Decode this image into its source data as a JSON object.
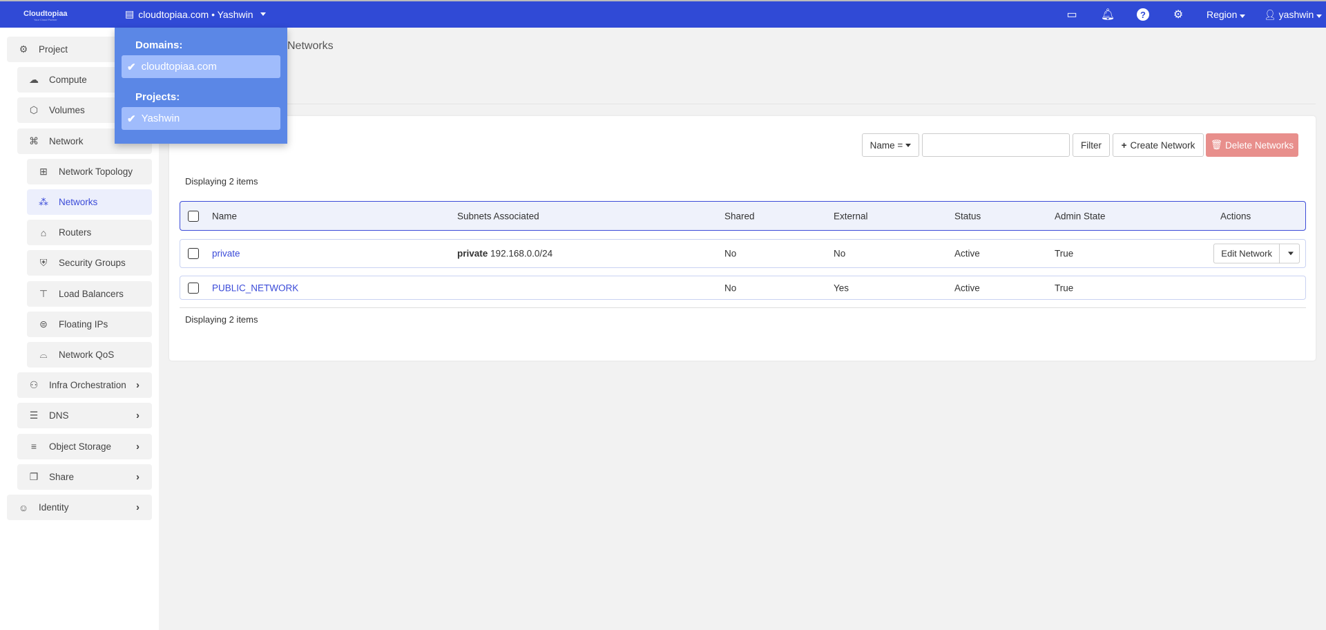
{
  "topbar": {
    "logo": "Cloudtopiaa",
    "logo_tagline": "Your Cloud Partner",
    "context": "cloudtopiaa.com • Yashwin",
    "icons": [
      "console-icon",
      "bell-icon",
      "help-icon",
      "gear-icon"
    ],
    "region": "Region",
    "user": "yashwin",
    "color": "#304ad6"
  },
  "dropdown": {
    "domains_label": "Domains:",
    "domain": "cloudtopiaa.com",
    "projects_label": "Projects:",
    "project": "Yashwin"
  },
  "sidebar": {
    "items": [
      {
        "label": "Project",
        "icon": "project-gear-icon"
      },
      {
        "label": "Compute",
        "icon": "cloud-icon"
      },
      {
        "label": "Volumes",
        "icon": "cube-icon"
      },
      {
        "label": "Network",
        "icon": "network-icon"
      },
      {
        "label": "Network Topology",
        "icon": "topology-icon"
      },
      {
        "label": "Networks",
        "icon": "networks-icon",
        "active": true
      },
      {
        "label": "Routers",
        "icon": "router-icon"
      },
      {
        "label": "Security Groups",
        "icon": "shield-icon"
      },
      {
        "label": "Load Balancers",
        "icon": "load-balancer-icon"
      },
      {
        "label": "Floating IPs",
        "icon": "floating-ip-icon"
      },
      {
        "label": "Network QoS",
        "icon": "qos-icon"
      },
      {
        "label": "Infra Orchestration",
        "icon": "orchestration-icon"
      },
      {
        "label": "DNS",
        "icon": "dns-icon"
      },
      {
        "label": "Object Storage",
        "icon": "storage-icon"
      },
      {
        "label": "Share",
        "icon": "share-icon"
      },
      {
        "label": "Identity",
        "icon": "identity-icon"
      }
    ]
  },
  "breadcrumb": "Networks",
  "toolbar": {
    "filter_select": "Name =",
    "filter_value": "",
    "filter": "Filter",
    "create": "Create Network",
    "delete": "Delete Networks"
  },
  "table": {
    "count": "Displaying 2 items",
    "columns": [
      "Name",
      "Subnets Associated",
      "Shared",
      "External",
      "Status",
      "Admin State",
      "Actions"
    ],
    "rows": [
      {
        "name": "private",
        "subnet_name": "private",
        "subnet_cidr": "192.168.0.0/24",
        "shared": "No",
        "external": "No",
        "status": "Active",
        "admin_state": "True",
        "action": "Edit Network"
      },
      {
        "name": "PUBLIC_NETWORK",
        "subnet_name": "",
        "subnet_cidr": "",
        "shared": "No",
        "external": "Yes",
        "status": "Active",
        "admin_state": "True",
        "action": ""
      }
    ]
  }
}
